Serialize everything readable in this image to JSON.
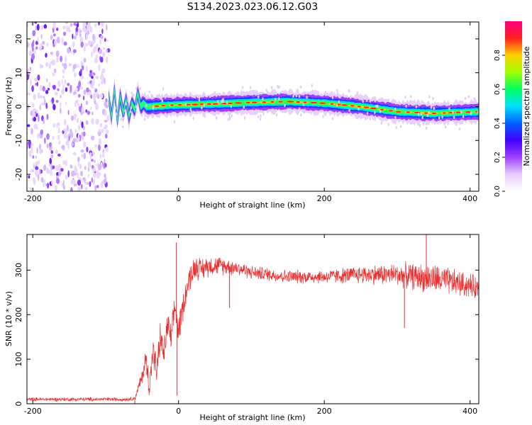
{
  "figure_title": "S134.2023.023.06.12.G03",
  "chart_data": [
    {
      "type": "heatmap",
      "title": "",
      "xlabel": "Height of straight line (km)",
      "ylabel": "Frequency (Hz)",
      "xlim": [
        -208,
        412
      ],
      "ylim": [
        -25,
        25
      ],
      "x_ticks": [
        -200,
        0,
        200,
        400
      ],
      "y_ticks": [
        -20,
        -10,
        0,
        10,
        20
      ],
      "colorbar": {
        "label": "Normalized spectral amplitude",
        "range": [
          0,
          1
        ],
        "ticks": [
          "0.0",
          "0.2",
          "0.4",
          "0.6",
          "0.8"
        ],
        "colors": [
          "#ffffff",
          "#e6ccff",
          "#a040ff",
          "#4000ff",
          "#0060ff",
          "#00e0ff",
          "#00ff60",
          "#a0ff00",
          "#ffd000",
          "#ff2020",
          "#ff0080"
        ]
      },
      "noise_region_x": [
        -208,
        -96
      ],
      "frequency_track": {
        "x": [
          -96,
          -92,
          -88,
          -84,
          -80,
          -76,
          -72,
          -68,
          -64,
          -60,
          -56,
          -52,
          -48,
          -44,
          -40,
          -20,
          0,
          50,
          100,
          150,
          200,
          250,
          300,
          350,
          412
        ],
        "y": [
          3,
          -3,
          5,
          -4,
          3,
          -2,
          2,
          -3,
          1,
          -1,
          4,
          0,
          1,
          0,
          0,
          0.3,
          0.5,
          0.8,
          1.2,
          1.5,
          1,
          0,
          -1.5,
          -2,
          -1.5
        ]
      }
    },
    {
      "type": "line",
      "title": "",
      "xlabel": "Height of straight line (km)",
      "ylabel": "SNR (10 * v/v)",
      "xlim": [
        -208,
        412
      ],
      "ylim": [
        0,
        380
      ],
      "x_ticks": [
        -200,
        0,
        200,
        400
      ],
      "y_ticks": [
        0,
        100,
        200,
        300
      ],
      "color": "#ee2c2c",
      "envelope": {
        "x": [
          -208,
          -100,
          -70,
          -60,
          -50,
          -45,
          -40,
          -35,
          -30,
          -25,
          -20,
          -15,
          -10,
          -5,
          0,
          5,
          10,
          15,
          20,
          25,
          30,
          40,
          60,
          80,
          100,
          150,
          200,
          250,
          300,
          350,
          400,
          412
        ],
        "y": [
          10,
          10,
          10,
          12,
          60,
          100,
          40,
          120,
          70,
          150,
          110,
          180,
          140,
          220,
          160,
          210,
          250,
          280,
          300,
          310,
          300,
          310,
          310,
          305,
          295,
          285,
          285,
          290,
          290,
          280,
          265,
          260
        ]
      },
      "noise_amplitude": {
        "x": [
          -208,
          -60,
          -40,
          0,
          50,
          100,
          200,
          300,
          350,
          412
        ],
        "y": [
          5,
          5,
          40,
          40,
          25,
          18,
          18,
          30,
          40,
          30
        ]
      },
      "spikes": [
        {
          "x": -3,
          "y": 362
        },
        {
          "x": -2,
          "y": 18
        },
        {
          "x": -60,
          "y": 0
        },
        {
          "x": 70,
          "y": 215
        },
        {
          "x": 340,
          "y": 380
        },
        {
          "x": 310,
          "y": 170
        },
        {
          "x": 412,
          "y": 30
        }
      ]
    }
  ]
}
